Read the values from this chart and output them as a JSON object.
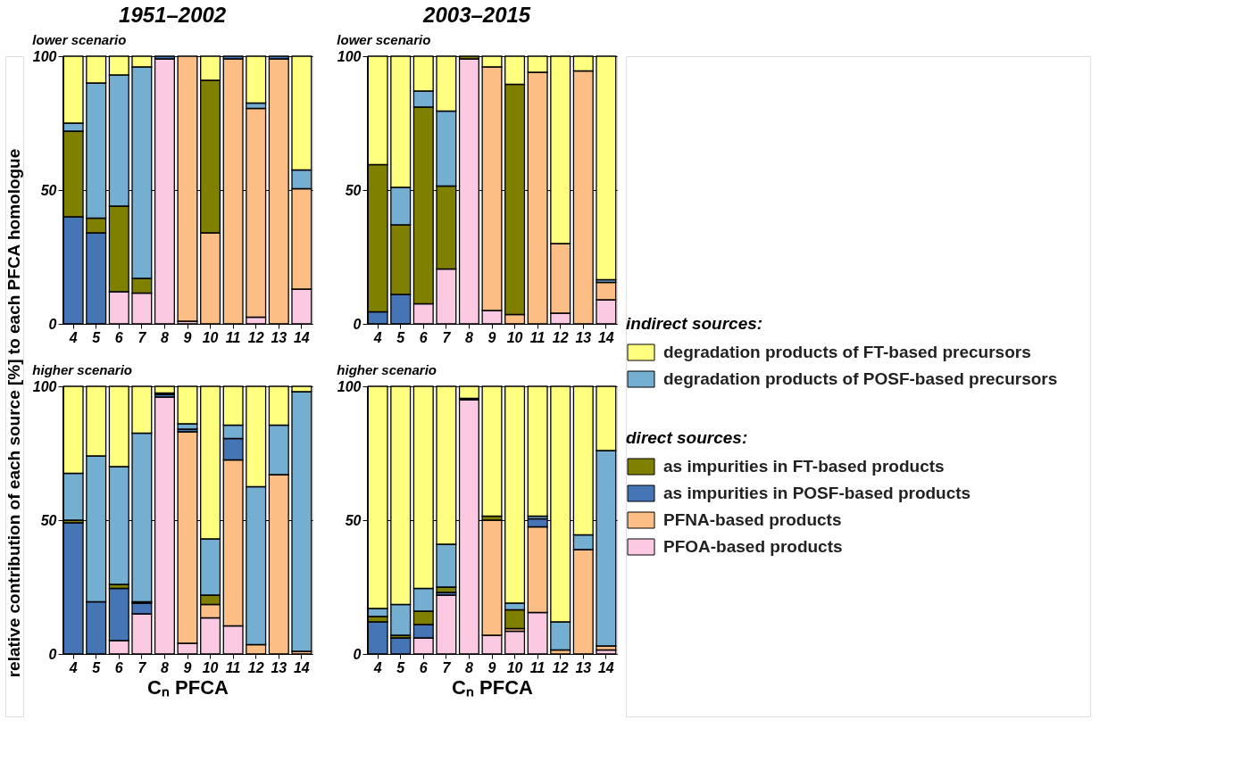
{
  "chart_data": [
    {
      "type": "bar",
      "title": "1951–2002",
      "subtitle": "lower scenario",
      "ylabel": "relative contribution of each source [%] to each PFCA homologue",
      "stacked": true,
      "legend": "right",
      "annotations": [
        "indirect sources:",
        "direct sources:"
      ],
      "ylim": [
        0,
        100
      ],
      "yticks": [
        0,
        50,
        100
      ],
      "grid": "y",
      "categories": [
        "4",
        "5",
        "6",
        "7",
        "8",
        "9",
        "10",
        "11",
        "12",
        "13",
        "14"
      ],
      "series": [
        {
          "name": "PFOA-based products",
          "color": "#fcc9e3",
          "values": [
            0,
            0,
            12,
            11.5,
            99,
            1,
            0,
            0,
            2.5,
            0,
            13
          ]
        },
        {
          "name": "PFNA-based products",
          "color": "#fdbe86",
          "values": [
            0,
            0,
            0,
            0,
            0,
            99,
            34,
            99,
            78,
            99,
            37.5
          ]
        },
        {
          "name": "as impurities in POSF-based products",
          "color": "#4575b5",
          "values": [
            40,
            34,
            0,
            0,
            1,
            0,
            0,
            1,
            0,
            1,
            0
          ]
        },
        {
          "name": "as impurities in FT-based products",
          "color": "#7f7f00",
          "values": [
            32,
            5.5,
            32,
            5.5,
            0,
            0,
            57,
            0,
            0,
            0,
            0
          ]
        },
        {
          "name": "degradation products of POSF-based precursors",
          "color": "#74aed1",
          "values": [
            3,
            50.5,
            49,
            79,
            0,
            0,
            0,
            0,
            2,
            0,
            7
          ]
        },
        {
          "name": "degradation products of FT-based precursors",
          "color": "#ffff7f",
          "values": [
            25,
            10,
            7,
            4,
            0,
            0,
            9,
            0,
            17.5,
            0,
            42.5
          ]
        }
      ]
    },
    {
      "type": "bar",
      "title": "2003–2015",
      "subtitle": "lower scenario",
      "stacked": true,
      "ylim": [
        0,
        100
      ],
      "yticks": [
        0,
        50,
        100
      ],
      "grid": "y",
      "categories": [
        "4",
        "5",
        "6",
        "7",
        "8",
        "9",
        "10",
        "11",
        "12",
        "13",
        "14"
      ],
      "series": [
        {
          "color": "#fcc9e3",
          "values": [
            0,
            0,
            7.5,
            20.5,
            99,
            5,
            0,
            0,
            4,
            0,
            9
          ]
        },
        {
          "color": "#fdbe86",
          "values": [
            0,
            0,
            0,
            0,
            0,
            91,
            3.5,
            94,
            26,
            94.5,
            6.5
          ]
        },
        {
          "color": "#4575b5",
          "values": [
            4.5,
            11,
            0,
            0,
            0,
            0,
            0,
            0,
            0,
            0,
            0
          ]
        },
        {
          "color": "#7f7f00",
          "values": [
            55,
            26,
            73.5,
            31,
            1,
            0,
            86,
            0,
            0,
            0,
            0
          ]
        },
        {
          "color": "#74aed1",
          "values": [
            0,
            14,
            6,
            28,
            0,
            0,
            0,
            0,
            0,
            0,
            1
          ]
        },
        {
          "color": "#ffff7f",
          "values": [
            40.5,
            49,
            13,
            20.5,
            0,
            4,
            10.5,
            6,
            70,
            5.5,
            83.5
          ]
        }
      ]
    },
    {
      "type": "bar",
      "subtitle": "higher scenario",
      "xlabel": "Cₙ PFCA",
      "stacked": true,
      "ylim": [
        0,
        100
      ],
      "yticks": [
        0,
        50,
        100
      ],
      "grid": "y",
      "categories": [
        "4",
        "5",
        "6",
        "7",
        "8",
        "9",
        "10",
        "11",
        "12",
        "13",
        "14"
      ],
      "series": [
        {
          "color": "#fcc9e3",
          "values": [
            0,
            0,
            5,
            15,
            96,
            4,
            13.5,
            10.5,
            0,
            0,
            0
          ]
        },
        {
          "color": "#fdbe86",
          "values": [
            0,
            0,
            0,
            0,
            0,
            79,
            5,
            62,
            3.5,
            67,
            1
          ]
        },
        {
          "color": "#4575b5",
          "values": [
            49,
            19.5,
            19.5,
            4,
            1,
            1,
            0,
            8,
            0,
            0,
            0
          ]
        },
        {
          "color": "#7f7f00",
          "values": [
            1,
            0,
            1.5,
            0.5,
            0.5,
            0,
            3.5,
            0,
            0,
            0,
            0
          ]
        },
        {
          "color": "#74aed1",
          "values": [
            17.5,
            54.5,
            44,
            63,
            0,
            2,
            21,
            5,
            59,
            18.5,
            97
          ]
        },
        {
          "color": "#ffff7f",
          "values": [
            32.5,
            26,
            30,
            17.5,
            2.5,
            14,
            57,
            14.5,
            37.5,
            14.5,
            2
          ]
        }
      ]
    },
    {
      "type": "bar",
      "subtitle": "higher scenario",
      "xlabel": "Cₙ PFCA",
      "stacked": true,
      "ylim": [
        0,
        100
      ],
      "yticks": [
        0,
        50,
        100
      ],
      "grid": "y",
      "categories": [
        "4",
        "5",
        "6",
        "7",
        "8",
        "9",
        "10",
        "11",
        "12",
        "13",
        "14"
      ],
      "series": [
        {
          "color": "#fcc9e3",
          "values": [
            0,
            0,
            6,
            22,
            95,
            7,
            8.5,
            15.5,
            0,
            0,
            1.5
          ]
        },
        {
          "color": "#fdbe86",
          "values": [
            0,
            0,
            0,
            0,
            0,
            43,
            1,
            32,
            1.5,
            39,
            1.5
          ]
        },
        {
          "color": "#4575b5",
          "values": [
            12,
            6,
            5,
            1,
            0,
            0,
            0,
            3,
            0,
            0,
            0
          ]
        },
        {
          "color": "#7f7f00",
          "values": [
            2,
            1,
            5,
            2,
            0.5,
            1.5,
            7,
            0,
            0,
            0,
            0
          ]
        },
        {
          "color": "#74aed1",
          "values": [
            3,
            11.5,
            8.5,
            16,
            0,
            0,
            2.5,
            1,
            10.5,
            5.5,
            73
          ]
        },
        {
          "color": "#ffff7f",
          "values": [
            83,
            81.5,
            75.5,
            59,
            4.5,
            48.5,
            81,
            48.5,
            88,
            55.5,
            24
          ]
        }
      ]
    }
  ]
}
